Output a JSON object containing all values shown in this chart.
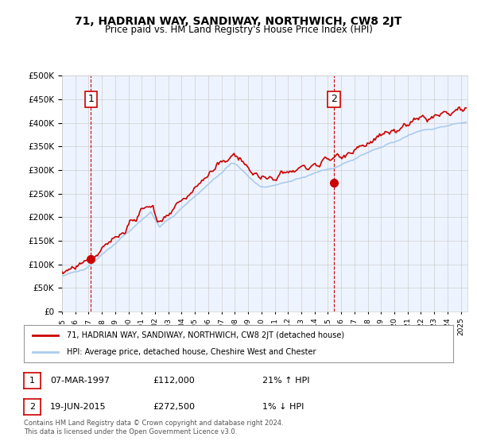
{
  "title": "71, HADRIAN WAY, SANDIWAY, NORTHWICH, CW8 2JT",
  "subtitle": "Price paid vs. HM Land Registry's House Price Index (HPI)",
  "ylim": [
    0,
    500000
  ],
  "yticks": [
    0,
    50000,
    100000,
    150000,
    200000,
    250000,
    300000,
    350000,
    400000,
    450000,
    500000
  ],
  "xlim_start": 1995.0,
  "xlim_end": 2025.5,
  "marker1_x": 1997.18,
  "marker1_y": 112000,
  "marker1_label": "1",
  "marker1_date": "07-MAR-1997",
  "marker1_price": "£112,000",
  "marker1_hpi": "21% ↑ HPI",
  "marker2_x": 2015.46,
  "marker2_y": 272500,
  "marker2_label": "2",
  "marker2_date": "19-JUN-2015",
  "marker2_price": "£272,500",
  "marker2_hpi": "1% ↓ HPI",
  "legend_line1": "71, HADRIAN WAY, SANDIWAY, NORTHWICH, CW8 2JT (detached house)",
  "legend_line2": "HPI: Average price, detached house, Cheshire West and Chester",
  "footnote": "Contains HM Land Registry data © Crown copyright and database right 2024.\nThis data is licensed under the Open Government Licence v3.0.",
  "property_color": "#cc0000",
  "hpi_color": "#aaccee",
  "background_color": "#eef4ff",
  "grid_color": "#cccccc",
  "marker_dashed_color": "#cc0000"
}
